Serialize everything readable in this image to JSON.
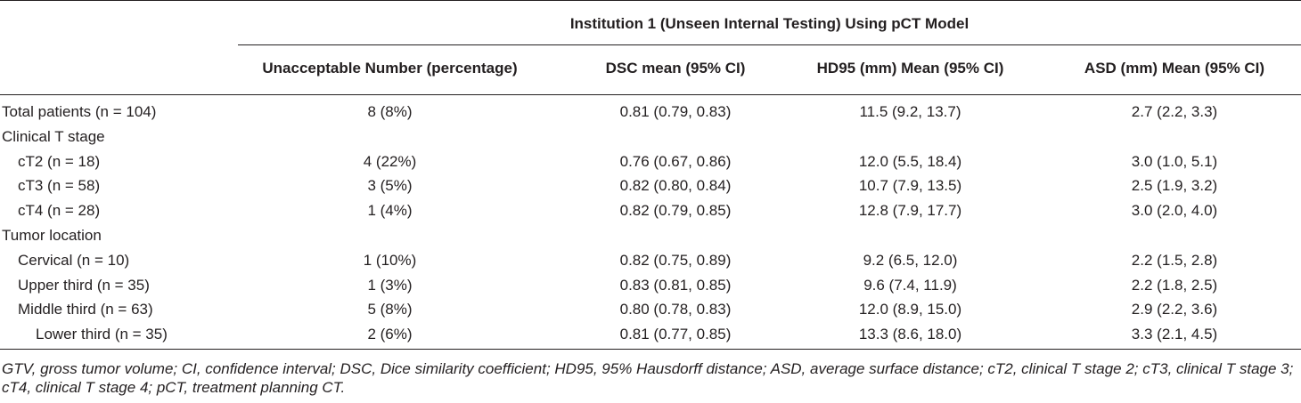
{
  "table": {
    "group_header": "Institution 1 (Unseen Internal Testing) Using pCT Model",
    "columns": [
      "Unacceptable Number (percentage)",
      "DSC mean (95% CI)",
      "HD95 (mm) Mean (95% CI)",
      "ASD (mm) Mean (95% CI)"
    ],
    "rows": [
      {
        "label": "Total patients (n = 104)",
        "indent": 0,
        "values": [
          "8 (8%)",
          "0.81 (0.79, 0.83)",
          "11.5 (9.2, 13.7)",
          "2.7 (2.2, 3.3)"
        ]
      },
      {
        "label": "Clinical T stage",
        "indent": 0,
        "values": [
          "",
          "",
          "",
          ""
        ]
      },
      {
        "label": "cT2 (n = 18)",
        "indent": 1,
        "values": [
          "4 (22%)",
          "0.76 (0.67, 0.86)",
          "12.0 (5.5, 18.4)",
          "3.0 (1.0, 5.1)"
        ]
      },
      {
        "label": "cT3 (n = 58)",
        "indent": 1,
        "values": [
          "3 (5%)",
          "0.82 (0.80, 0.84)",
          "10.7 (7.9, 13.5)",
          "2.5 (1.9, 3.2)"
        ]
      },
      {
        "label": "cT4 (n = 28)",
        "indent": 1,
        "values": [
          "1 (4%)",
          "0.82 (0.79, 0.85)",
          "12.8 (7.9, 17.7)",
          "3.0 (2.0, 4.0)"
        ]
      },
      {
        "label": "Tumor location",
        "indent": 0,
        "values": [
          "",
          "",
          "",
          ""
        ]
      },
      {
        "label": "Cervical (n = 10)",
        "indent": 1,
        "values": [
          "1 (10%)",
          "0.82 (0.75, 0.89)",
          "9.2 (6.5, 12.0)",
          "2.2 (1.5, 2.8)"
        ]
      },
      {
        "label": "Upper third (n = 35)",
        "indent": 1,
        "values": [
          "1 (3%)",
          "0.83 (0.81, 0.85)",
          "9.6 (7.4, 11.9)",
          "2.2 (1.8, 2.5)"
        ]
      },
      {
        "label": "Middle third (n = 63)",
        "indent": 1,
        "values": [
          "5 (8%)",
          "0.80 (0.78, 0.83)",
          "12.0 (8.9, 15.0)",
          "2.9 (2.2, 3.6)"
        ]
      },
      {
        "label": "Lower third (n = 35)",
        "indent": 2,
        "values": [
          "2 (6%)",
          "0.81 (0.77, 0.85)",
          "13.3 (8.6, 18.0)",
          "3.3 (2.1, 4.5)"
        ]
      }
    ]
  },
  "footnote": "GTV, gross tumor volume; CI, confidence interval; DSC, Dice similarity coefficient; HD95, 95% Hausdorff distance; ASD, average surface distance; cT2, clinical T stage 2; cT3, clinical T stage 3; cT4, clinical T stage 4; pCT, treatment planning CT."
}
